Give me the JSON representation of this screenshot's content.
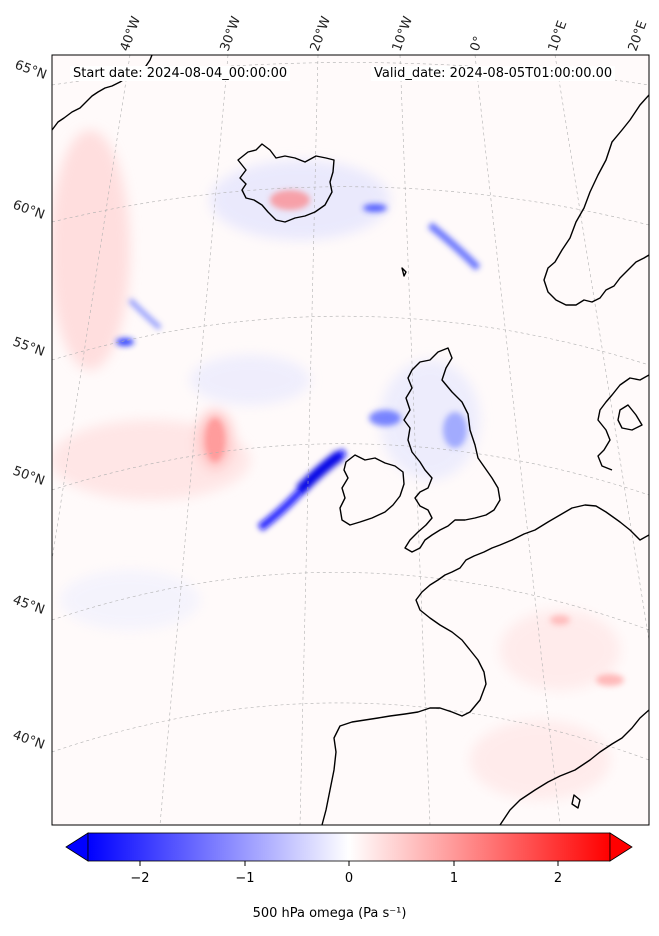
{
  "header": {
    "start_date": "Start date: 2024-08-04_00:00:00",
    "valid_date": "Valid_date: 2024-08-05T01:00:00.00"
  },
  "longitude_labels": [
    "40°W",
    "30°W",
    "20°W",
    "10°W",
    "0°",
    "10°E",
    "20°E"
  ],
  "latitude_labels": [
    "65°N",
    "60°N",
    "55°N",
    "50°N",
    "45°N",
    "40°N"
  ],
  "colorbar": {
    "label": "500 hPa omega (Pa s⁻¹)",
    "ticks": [
      "−2",
      "−1",
      "0",
      "1",
      "2"
    ],
    "tick_values": [
      -2,
      -1,
      0,
      1,
      2
    ],
    "range": [
      -2.5,
      2.5
    ],
    "extend": "both",
    "colormap": "bwr",
    "colors": {
      "negative": "#0000ff",
      "zero": "#ffffff",
      "positive": "#ff0000"
    }
  },
  "coastline_color": "#000000",
  "gridline_color": "#b0b0b0"
}
